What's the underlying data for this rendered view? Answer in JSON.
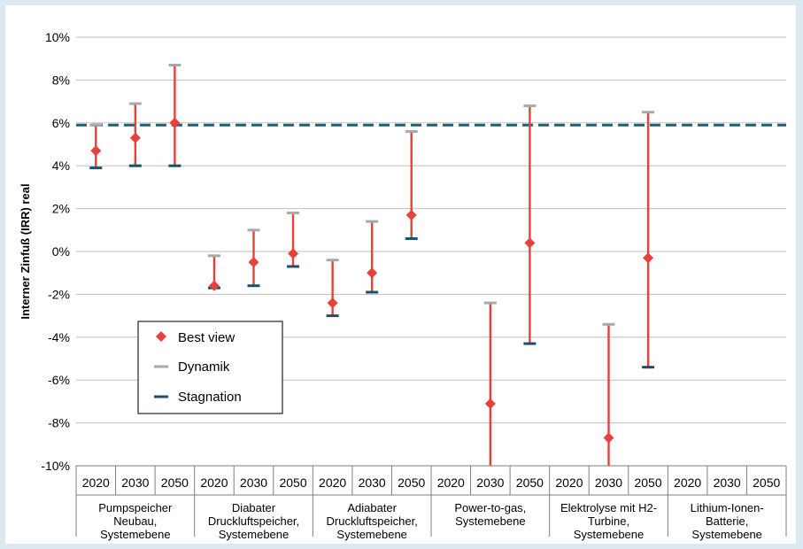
{
  "chart_data": {
    "type": "error-bar",
    "title": "",
    "ylabel": "Interner Zinfuß (IRR) real",
    "ylim": [
      -0.1,
      0.1
    ],
    "yticks": [
      "10%",
      "8%",
      "6%",
      "4%",
      "2%",
      "0%",
      "-2%",
      "-4%",
      "-6%",
      "-8%",
      "-10%"
    ],
    "years": [
      "2020",
      "2030",
      "2050"
    ],
    "groups": [
      {
        "label": [
          "Pumpspeicher",
          "Neubau,",
          "Systemebene"
        ],
        "best": [
          0.047,
          0.053,
          0.06
        ],
        "dynamik": [
          0.059,
          0.069,
          0.087
        ],
        "stagnation": [
          0.039,
          0.04,
          0.04
        ]
      },
      {
        "label": [
          "Diabater",
          "Druckluftspeicher,",
          "Systemebene"
        ],
        "best": [
          -0.016,
          -0.005,
          -0.001
        ],
        "dynamik": [
          -0.002,
          0.01,
          0.018
        ],
        "stagnation": [
          -0.017,
          -0.016,
          -0.007
        ]
      },
      {
        "label": [
          "Adiabater",
          "Druckluftspeicher,",
          "Systemebene"
        ],
        "best": [
          -0.024,
          -0.01,
          0.017
        ],
        "dynamik": [
          -0.004,
          0.014,
          0.056
        ],
        "stagnation": [
          -0.03,
          -0.019,
          0.006
        ]
      },
      {
        "label": [
          "Power-to-gas,",
          "Systemebene"
        ],
        "best": [
          null,
          -0.071,
          0.004
        ],
        "dynamik": [
          null,
          -0.024,
          0.068
        ],
        "stagnation": [
          null,
          -0.1,
          -0.043
        ]
      },
      {
        "label": [
          "Elektrolyse mit H2-",
          "Turbine,",
          "Systemebene"
        ],
        "best": [
          null,
          -0.087,
          -0.003
        ],
        "dynamik": [
          null,
          -0.034,
          0.065
        ],
        "stagnation": [
          null,
          -0.1,
          -0.054
        ]
      },
      {
        "label": [
          "Lithium-Ionen-",
          "Batterie,",
          "Systemebene"
        ],
        "best": [
          null,
          null,
          null
        ],
        "dynamik": [
          null,
          null,
          null
        ],
        "stagnation": [
          null,
          null,
          null
        ]
      }
    ],
    "stagnation_reference": 0.059,
    "legend": {
      "position": "bottom-left",
      "entries": [
        "Best view",
        "Dynamik",
        "Stagnation"
      ]
    },
    "colors": {
      "best": "#e8403a",
      "range": "#e8403a",
      "dynamik": "#a7a9ac",
      "stagnation": "#1f4e6b",
      "reference": "#1f5f77",
      "grid": "#bfbfbf"
    },
    "grid": true
  }
}
